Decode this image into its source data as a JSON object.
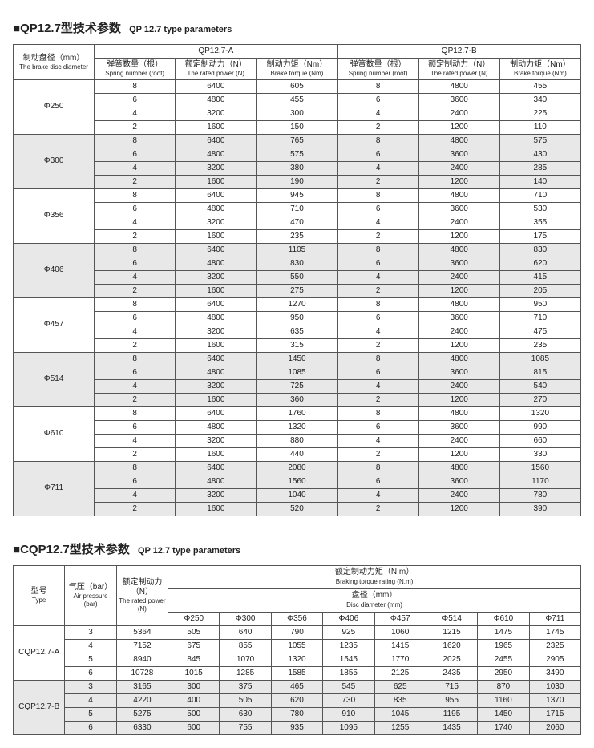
{
  "section1": {
    "square": "■",
    "title_cn": "QP12.7型技术参数",
    "title_en": "QP 12.7 type parameters",
    "model_a": "QP12.7-A",
    "model_b": "QP12.7-B",
    "headers": {
      "diam_cn": "制动盘径（mm）",
      "diam_en": "The brake disc diameter",
      "spring_cn": "弹簧数量（根）",
      "spring_en": "Spring number (root)",
      "power_cn": "额定制动力（N）",
      "power_en": "The rated power (N)",
      "torque_cn": "制动力矩（Nm）",
      "torque_en": "Brake torque (Nm)"
    },
    "springs": [
      "8",
      "6",
      "4",
      "2"
    ],
    "powerA": [
      "6400",
      "4800",
      "3200",
      "1600"
    ],
    "powerB": [
      "4800",
      "3600",
      "2400",
      "1200"
    ],
    "groups": [
      {
        "diam": "Φ250",
        "shade": false,
        "tA": [
          "605",
          "455",
          "300",
          "150"
        ],
        "tB": [
          "455",
          "340",
          "225",
          "110"
        ]
      },
      {
        "diam": "Φ300",
        "shade": true,
        "tA": [
          "765",
          "575",
          "380",
          "190"
        ],
        "tB": [
          "575",
          "430",
          "285",
          "140"
        ]
      },
      {
        "diam": "Φ356",
        "shade": false,
        "tA": [
          "945",
          "710",
          "470",
          "235"
        ],
        "tB": [
          "710",
          "530",
          "355",
          "175"
        ]
      },
      {
        "diam": "Φ406",
        "shade": true,
        "tA": [
          "1105",
          "830",
          "550",
          "275"
        ],
        "tB": [
          "830",
          "620",
          "415",
          "205"
        ]
      },
      {
        "diam": "Φ457",
        "shade": false,
        "tA": [
          "1270",
          "950",
          "635",
          "315"
        ],
        "tB": [
          "950",
          "710",
          "475",
          "235"
        ]
      },
      {
        "diam": "Φ514",
        "shade": true,
        "tA": [
          "1450",
          "1085",
          "725",
          "360"
        ],
        "tB": [
          "1085",
          "815",
          "540",
          "270"
        ]
      },
      {
        "diam": "Φ610",
        "shade": false,
        "tA": [
          "1760",
          "1320",
          "880",
          "440"
        ],
        "tB": [
          "1320",
          "990",
          "660",
          "330"
        ]
      },
      {
        "diam": "Φ711",
        "shade": true,
        "tA": [
          "2080",
          "1560",
          "1040",
          "520"
        ],
        "tB": [
          "1560",
          "1170",
          "780",
          "390"
        ]
      }
    ]
  },
  "section2": {
    "square": "■",
    "title_cn": "CQP12.7型技术参数",
    "title_en": "QP 12.7 type parameters",
    "headers": {
      "type_cn": "型号",
      "type_en": "Type",
      "air_cn": "气压（bar）",
      "air_en": "Air pressure (bar)",
      "power_cn": "额定制动力（N）",
      "power_en": "The rated power (N)",
      "torque_cn": "额定制动力矩（N.m）",
      "torque_en": "Braking torque rating (N.m)",
      "diam_cn": "盘径（mm）",
      "diam_en": "Disc diameter (mm)"
    },
    "diams": [
      "Φ250",
      "Φ300",
      "Φ356",
      "Φ406",
      "Φ457",
      "Φ514",
      "Φ610",
      "Φ711"
    ],
    "groups": [
      {
        "type": "CQP12.7-A",
        "shade": false,
        "rows": [
          {
            "air": "3",
            "pw": "5364",
            "t": [
              "505",
              "640",
              "790",
              "925",
              "1060",
              "1215",
              "1475",
              "1745"
            ]
          },
          {
            "air": "4",
            "pw": "7152",
            "t": [
              "675",
              "855",
              "1055",
              "1235",
              "1415",
              "1620",
              "1965",
              "2325"
            ]
          },
          {
            "air": "5",
            "pw": "8940",
            "t": [
              "845",
              "1070",
              "1320",
              "1545",
              "1770",
              "2025",
              "2455",
              "2905"
            ]
          },
          {
            "air": "6",
            "pw": "10728",
            "t": [
              "1015",
              "1285",
              "1585",
              "1855",
              "2125",
              "2435",
              "2950",
              "3490"
            ]
          }
        ]
      },
      {
        "type": "CQP12.7-B",
        "shade": true,
        "rows": [
          {
            "air": "3",
            "pw": "3165",
            "t": [
              "300",
              "375",
              "465",
              "545",
              "625",
              "715",
              "870",
              "1030"
            ]
          },
          {
            "air": "4",
            "pw": "4220",
            "t": [
              "400",
              "505",
              "620",
              "730",
              "835",
              "955",
              "1160",
              "1370"
            ]
          },
          {
            "air": "5",
            "pw": "5275",
            "t": [
              "500",
              "630",
              "780",
              "910",
              "1045",
              "1195",
              "1450",
              "1715"
            ]
          },
          {
            "air": "6",
            "pw": "6330",
            "t": [
              "600",
              "755",
              "935",
              "1095",
              "1255",
              "1435",
              "1740",
              "2060"
            ]
          }
        ]
      }
    ]
  }
}
